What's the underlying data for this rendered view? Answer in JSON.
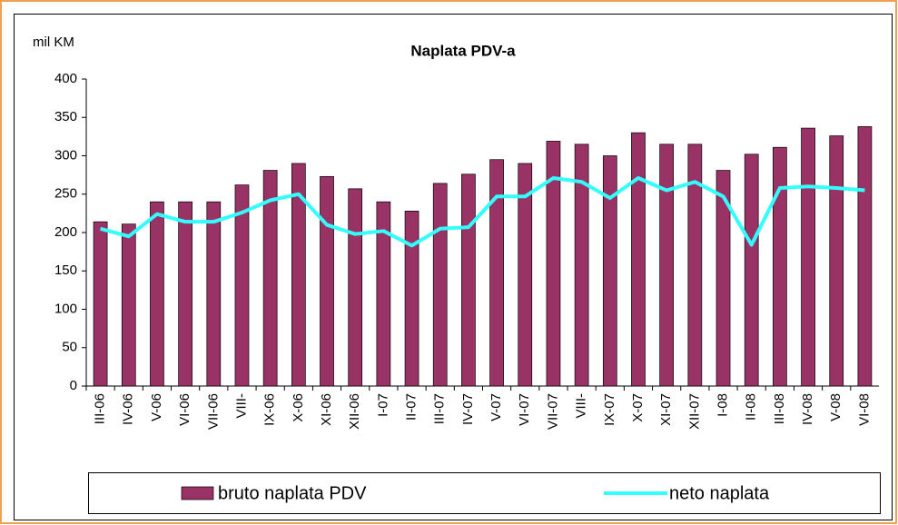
{
  "chart_data": {
    "type": "bar",
    "title": "Naplata PDV-a",
    "y_label": "mil KM",
    "categories": [
      "III-06",
      "IV-06",
      "V-06",
      "VI-06",
      "VII-06",
      "VIII-",
      "IX-06",
      "X-06",
      "XI-06",
      "XII-06",
      "I-07",
      "II-07",
      "III-07",
      "IV-07",
      "V-07",
      "VI-07",
      "VII-07",
      "VIII-",
      "IX-07",
      "X-07",
      "XI-07",
      "XII-07",
      "I-08",
      "II-08",
      "III-08",
      "IV-08",
      "V-08",
      "VI-08"
    ],
    "series": [
      {
        "name": "bruto naplata PDV",
        "type": "bar",
        "color": "#993366",
        "values": [
          214,
          211,
          240,
          240,
          240,
          262,
          281,
          290,
          273,
          257,
          240,
          228,
          264,
          276,
          295,
          290,
          319,
          315,
          300,
          330,
          315,
          315,
          281,
          302,
          311,
          336,
          326,
          338
        ]
      },
      {
        "name": "neto naplata",
        "type": "line",
        "color": "#33ffff",
        "values": [
          205,
          195,
          224,
          214,
          214,
          226,
          242,
          250,
          210,
          198,
          202,
          183,
          205,
          207,
          247,
          247,
          271,
          266,
          245,
          271,
          255,
          266,
          247,
          184,
          258,
          260,
          258,
          255
        ]
      }
    ],
    "ylim": [
      0,
      400
    ],
    "yticks": [
      0,
      50,
      100,
      150,
      200,
      250,
      300,
      350,
      400
    ],
    "grid": false,
    "legend": "bottom"
  }
}
